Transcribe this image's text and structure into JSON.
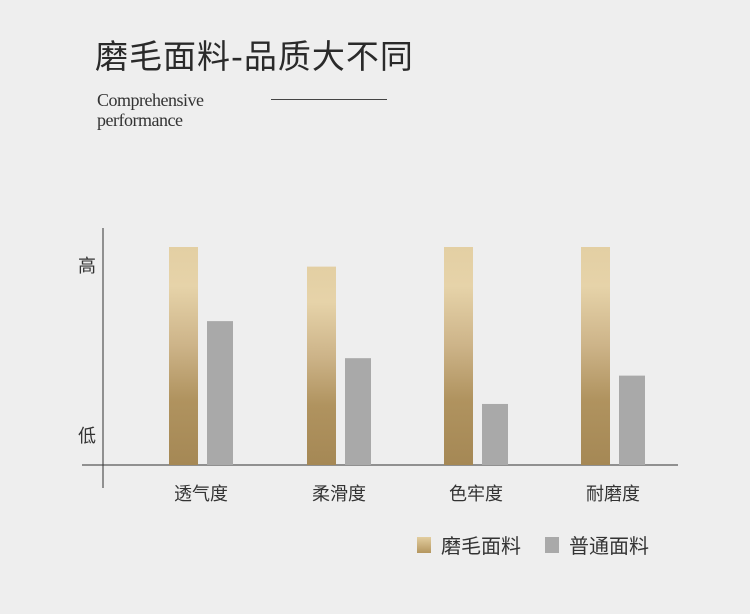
{
  "header": {
    "title": "磨毛面料-品质大不同",
    "subtitle_line1": "Comprehensive",
    "subtitle_line2": "performance"
  },
  "chart_data": {
    "type": "bar",
    "categories": [
      "透气度",
      "柔滑度",
      "色牢度",
      "耐磨度"
    ],
    "y_tick_labels": {
      "high": "高",
      "low": "低"
    },
    "ylim": [
      0,
      100
    ],
    "series": [
      {
        "name": "磨毛面料",
        "values": [
          100,
          91,
          100,
          100
        ],
        "color": "#b4965f"
      },
      {
        "name": "普通面料",
        "values": [
          66,
          49,
          28,
          41
        ],
        "color": "#a9a9a9"
      }
    ],
    "legend_position": "bottom-right",
    "grid": false
  }
}
